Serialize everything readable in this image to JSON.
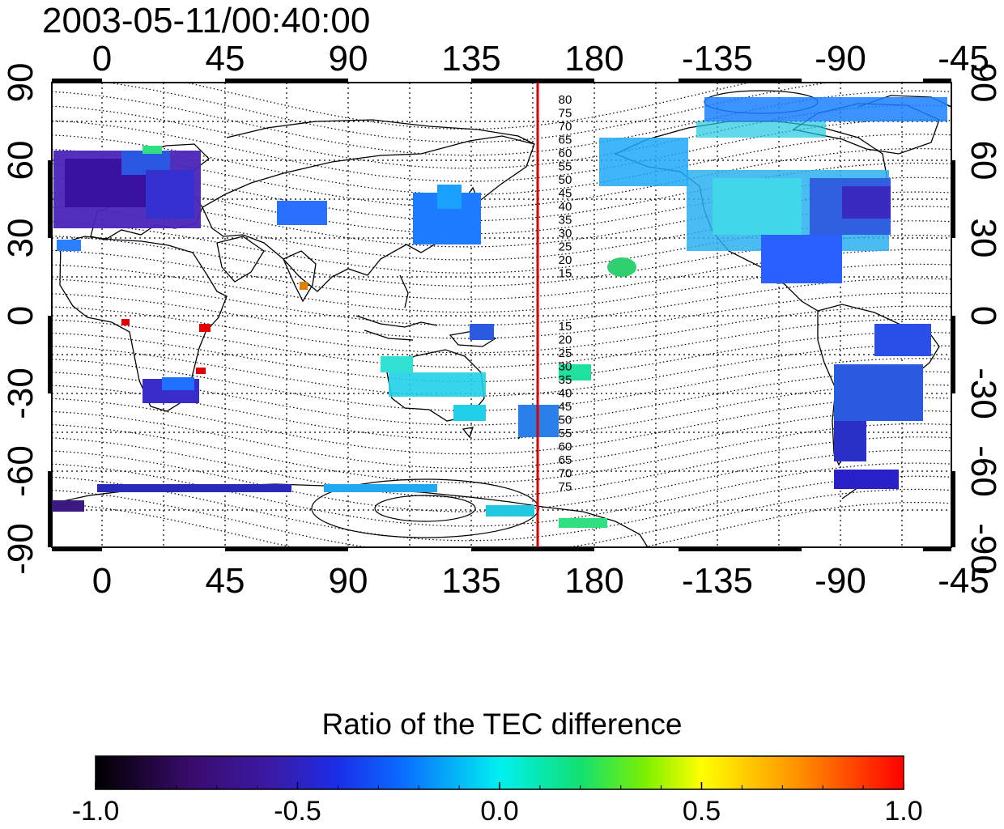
{
  "title": "2003-05-11/00:40:00",
  "map": {
    "top_lon_labels": [
      "0",
      "45",
      "90",
      "135",
      "180",
      "-135",
      "-90",
      "-45"
    ],
    "bottom_lon_labels": [
      "0",
      "45",
      "90",
      "135",
      "180",
      "-135",
      "-90",
      "-45"
    ],
    "left_lat_labels": [
      "90",
      "60",
      "30",
      "0",
      "-30",
      "-60",
      "-90"
    ],
    "right_lat_labels": [
      "90",
      "60",
      "30",
      "0",
      "-30",
      "-60",
      "-90"
    ],
    "contour_labels_north": [
      "80",
      "75",
      "70",
      "65",
      "60",
      "55",
      "50",
      "45",
      "40",
      "35",
      "30",
      "25",
      "20",
      "15"
    ],
    "contour_labels_south": [
      "15",
      "20",
      "25",
      "30",
      "35",
      "40",
      "45",
      "50",
      "55",
      "60",
      "65",
      "70",
      "75"
    ],
    "meridian_line_color": "#e00000",
    "grid": true
  },
  "colorbar": {
    "title": "Ratio of the TEC difference",
    "min": -1.0,
    "max": 1.0,
    "tick_labels": [
      "-1.0",
      "-0.5",
      "0.0",
      "0.5",
      "1.0"
    ],
    "colormap": [
      "#000000",
      "#4a0f8c",
      "#2a1ed8",
      "#0a6cff",
      "#00e0e8",
      "#12e070",
      "#7cf000",
      "#ffff00",
      "#ffa000",
      "#ff0000"
    ]
  }
}
